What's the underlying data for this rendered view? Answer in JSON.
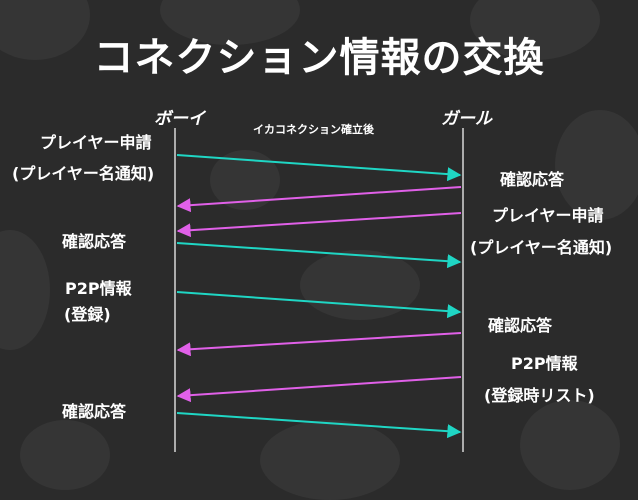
{
  "slide": {
    "title": "コネクション情報の交換",
    "boy": "ボーイ",
    "girl": "ガール",
    "note": "イカコネクション確立後"
  },
  "labels": {
    "boy_req_1": "プレイヤー申請",
    "boy_req_2": "(プレイヤー名通知)",
    "boy_ack_1": "確認応答",
    "boy_p2p_1": "P2P情報",
    "boy_p2p_2": "(登録)",
    "boy_ack_2": "確認応答",
    "girl_ack_1": "確認応答",
    "girl_req_1": "プレイヤー申請",
    "girl_req_2": "(プレイヤー名通知)",
    "girl_ack_2": "確認応答",
    "girl_p2p_1": "P2P情報",
    "girl_p2p_2": "(登録時リスト)"
  },
  "colors": {
    "background": "#2b2b2b",
    "blob": "#353535",
    "lifeline": "#d8d8d8",
    "to_girl": "#1fd6c4",
    "to_boy": "#e060e8"
  }
}
